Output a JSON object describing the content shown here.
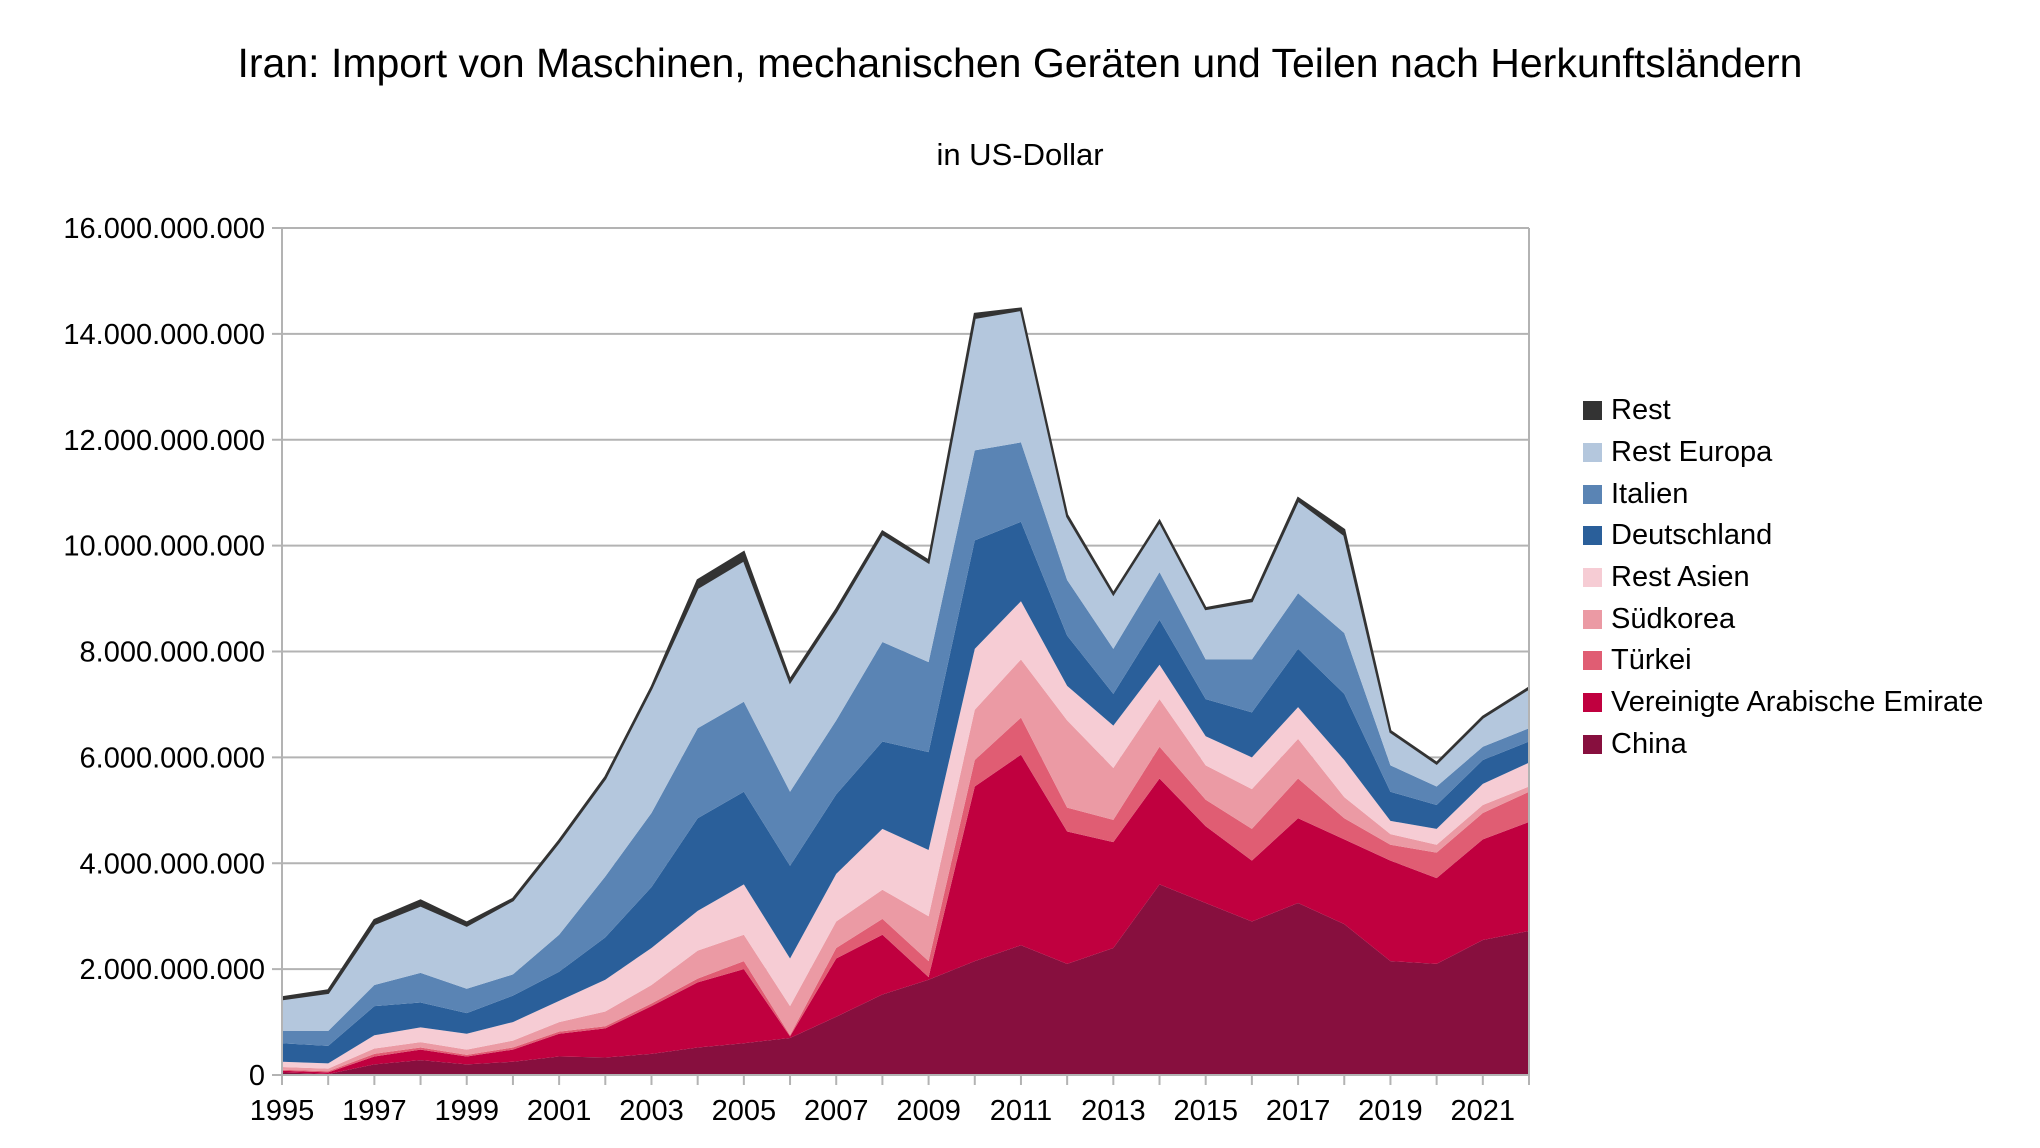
{
  "chart_data": {
    "type": "area",
    "stacked": true,
    "title": "Iran: Import von Maschinen, mechanischen Geräten und Teilen nach Herkunftsländern",
    "subtitle": "in US-Dollar",
    "xlabel": "",
    "ylabel": "",
    "ylim": [
      0,
      16000000000
    ],
    "yticks": [
      0,
      2000000000,
      4000000000,
      6000000000,
      8000000000,
      10000000000,
      12000000000,
      14000000000,
      16000000000
    ],
    "ytick_labels": [
      "0",
      "2.000.000.000",
      "4.000.000.000",
      "6.000.000.000",
      "8.000.000.000",
      "10.000.000.000",
      "12.000.000.000",
      "14.000.000.000",
      "16.000.000.000"
    ],
    "x": [
      1995,
      1996,
      1997,
      1998,
      1999,
      2000,
      2001,
      2002,
      2003,
      2004,
      2005,
      2006,
      2007,
      2008,
      2009,
      2010,
      2011,
      2012,
      2013,
      2014,
      2015,
      2016,
      2017,
      2018,
      2019,
      2020,
      2021,
      2022
    ],
    "xtick_labels": [
      "1995",
      "1997",
      "1999",
      "2001",
      "2003",
      "2005",
      "2007",
      "2009",
      "2011",
      "2013",
      "2015",
      "2017",
      "2019",
      "2021"
    ],
    "grid": "horizontal",
    "legend_position": "right",
    "series": [
      {
        "name": "China",
        "color": "#870f3e",
        "values": [
          0.05,
          0.02,
          0.2,
          0.28,
          0.2,
          0.25,
          0.35,
          0.33,
          0.4,
          0.52,
          0.6,
          0.7,
          1.1,
          1.52,
          1.8,
          2.15,
          2.45,
          2.1,
          2.4,
          3.6,
          3.25,
          2.9,
          3.25,
          2.85,
          2.15,
          2.1,
          2.55,
          2.72
        ]
      },
      {
        "name": "Vereinigte Arabische Emirate",
        "color": "#c0003f",
        "values": [
          0.03,
          0.03,
          0.15,
          0.2,
          0.15,
          0.23,
          0.43,
          0.55,
          0.9,
          1.23,
          1.4,
          0.03,
          1.1,
          1.13,
          0.05,
          3.3,
          3.6,
          2.5,
          2.0,
          2.0,
          1.45,
          1.15,
          1.6,
          1.6,
          1.9,
          1.62,
          1.9,
          2.06
        ]
      },
      {
        "name": "Türkei",
        "color": "#e05d73",
        "values": [
          0.02,
          0.02,
          0.05,
          0.04,
          0.03,
          0.04,
          0.04,
          0.04,
          0.05,
          0.07,
          0.15,
          0.02,
          0.2,
          0.3,
          0.3,
          0.5,
          0.7,
          0.45,
          0.42,
          0.6,
          0.5,
          0.6,
          0.75,
          0.4,
          0.3,
          0.48,
          0.5,
          0.57
        ]
      },
      {
        "name": "Südkorea",
        "color": "#eb9aa4",
        "values": [
          0.05,
          0.05,
          0.1,
          0.1,
          0.1,
          0.13,
          0.18,
          0.28,
          0.35,
          0.53,
          0.5,
          0.55,
          0.5,
          0.55,
          0.85,
          0.95,
          1.1,
          1.65,
          0.98,
          0.9,
          0.65,
          0.75,
          0.75,
          0.4,
          0.2,
          0.15,
          0.15,
          0.1
        ]
      },
      {
        "name": "Rest Asien",
        "color": "#f6ccd4",
        "values": [
          0.1,
          0.1,
          0.25,
          0.28,
          0.3,
          0.35,
          0.4,
          0.6,
          0.7,
          0.75,
          0.95,
          0.9,
          0.9,
          1.15,
          1.25,
          1.15,
          1.1,
          0.65,
          0.8,
          0.65,
          0.55,
          0.6,
          0.6,
          0.7,
          0.25,
          0.3,
          0.4,
          0.45
        ]
      },
      {
        "name": "Deutschland",
        "color": "#2a5f9a",
        "values": [
          0.35,
          0.33,
          0.55,
          0.47,
          0.39,
          0.5,
          0.55,
          0.8,
          1.15,
          1.75,
          1.75,
          1.75,
          1.5,
          1.65,
          1.85,
          2.05,
          1.5,
          0.95,
          0.6,
          0.85,
          0.7,
          0.85,
          1.1,
          1.25,
          0.55,
          0.45,
          0.45,
          0.4
        ]
      },
      {
        "name": "Italien",
        "color": "#5a84b4",
        "values": [
          0.23,
          0.28,
          0.4,
          0.56,
          0.46,
          0.4,
          0.7,
          1.15,
          1.4,
          1.7,
          1.7,
          1.4,
          1.4,
          1.88,
          1.7,
          1.7,
          1.5,
          1.05,
          0.85,
          0.9,
          0.75,
          1.0,
          1.05,
          1.15,
          0.5,
          0.35,
          0.25,
          0.25
        ]
      },
      {
        "name": "Rest Europa",
        "color": "#b4c7dd",
        "values": [
          0.6,
          0.72,
          1.15,
          1.27,
          1.19,
          1.4,
          1.75,
          1.85,
          2.35,
          2.65,
          2.67,
          2.07,
          2.05,
          2.04,
          1.88,
          2.5,
          2.5,
          1.2,
          1.03,
          0.95,
          0.95,
          1.1,
          1.75,
          1.85,
          0.63,
          0.43,
          0.55,
          0.75
        ]
      },
      {
        "name": "Rest",
        "color": "#333333",
        "values": [
          0.04,
          0.05,
          0.08,
          0.1,
          0.06,
          0.03,
          0.03,
          0.03,
          0.03,
          0.15,
          0.16,
          0.05,
          0.05,
          0.05,
          0.04,
          0.08,
          0.03,
          0.03,
          0.02,
          0.02,
          0.02,
          0.03,
          0.05,
          0.1,
          0.02,
          0.02,
          0.02,
          0.02
        ]
      }
    ],
    "value_unit": "billion US-Dollar (series values)",
    "legend_order": [
      "Rest",
      "Rest Europa",
      "Italien",
      "Deutschland",
      "Rest Asien",
      "Südkorea",
      "Türkei",
      "Vereinigte Arabische Emirate",
      "China"
    ]
  },
  "legend": [
    {
      "label": "Rest",
      "color": "#333333"
    },
    {
      "label": "Rest Europa",
      "color": "#b4c7dd"
    },
    {
      "label": "Italien",
      "color": "#5a84b4"
    },
    {
      "label": "Deutschland",
      "color": "#2a5f9a"
    },
    {
      "label": "Rest Asien",
      "color": "#f6ccd4"
    },
    {
      "label": "Südkorea",
      "color": "#eb9aa4"
    },
    {
      "label": "Türkei",
      "color": "#e05d73"
    },
    {
      "label": "Vereinigte Arabische Emirate",
      "color": "#c0003f"
    },
    {
      "label": "China",
      "color": "#870f3e"
    }
  ]
}
